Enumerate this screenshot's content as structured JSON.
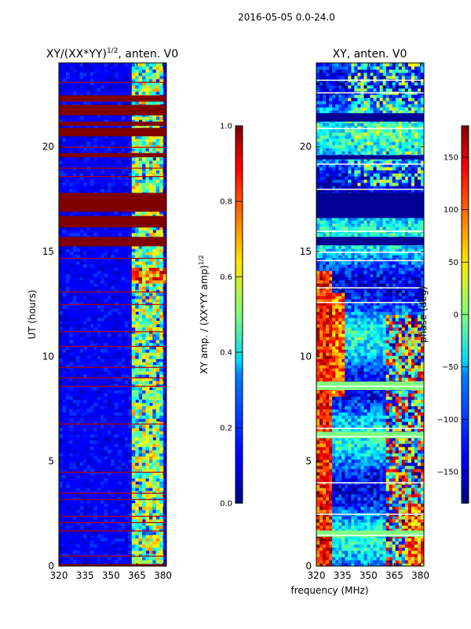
{
  "figure": {
    "suptitle": "2016-05-05 0.0-24.0",
    "xlabel": "frequency (MHz)"
  },
  "chart_data": [
    {
      "type": "heatmap",
      "title_main": "XY/(XX*YY)",
      "title_sup": "1/2",
      "title_tail": ", anten. V0",
      "ylabel": "UT (hours)",
      "xlim": [
        320,
        382
      ],
      "ylim": [
        0,
        24
      ],
      "xticks": [
        320,
        335,
        350,
        365,
        380
      ],
      "yticks": [
        0,
        5,
        10,
        15,
        20
      ],
      "colormap": "jet",
      "colorbar": {
        "label_main": "XY amp. / (XX*YY amp)",
        "label_sup": "1/2",
        "range": [
          0.0,
          1.0
        ],
        "ticks": [
          "0.0",
          "0.2",
          "0.4",
          "0.6",
          "0.8",
          "1.0"
        ],
        "tick_values": [
          0.0,
          0.2,
          0.4,
          0.6,
          0.8,
          1.0
        ]
      },
      "background_value": 0.12,
      "saturated_bands_hours": [
        [
          15.25,
          15.7
        ],
        [
          16.15,
          16.7
        ],
        [
          16.9,
          17.8
        ],
        [
          19.5,
          19.7
        ],
        [
          20.5,
          20.9
        ],
        [
          21.0,
          21.2
        ],
        [
          21.5,
          22.0
        ],
        [
          22.15,
          22.45
        ],
        [
          0.0,
          0.1
        ]
      ],
      "thin_red_lines_hours": [
        0.5,
        1.7,
        2.1,
        2.4,
        3.2,
        3.5,
        4.5,
        6.8,
        8.6,
        9.0,
        9.5,
        10.5,
        11.2,
        12.5,
        13.1,
        14.7,
        18.6,
        19.0,
        20.0,
        23.1
      ],
      "bright_freq_columns_MHz": [
        [
          361,
          364
        ],
        [
          365.5,
          367
        ],
        [
          368,
          371
        ],
        [
          372,
          375
        ],
        [
          376,
          379
        ]
      ],
      "flare_hours": [
        13.5,
        14.2
      ]
    },
    {
      "type": "heatmap",
      "title": "XY, anten. V0",
      "xlim": [
        320,
        382
      ],
      "ylim": [
        0,
        24
      ],
      "xticks": [
        320,
        335,
        350,
        365,
        380
      ],
      "yticks": [
        0,
        5,
        10,
        15,
        20
      ],
      "colormap": "jet",
      "colorbar": {
        "label": "phase (deg)",
        "range": [
          -180,
          180
        ],
        "ticks": [
          "−150",
          "−100",
          "−50",
          "0",
          "50",
          "100",
          "150"
        ],
        "tick_values": [
          -150,
          -100,
          -50,
          0,
          50,
          100,
          150
        ]
      },
      "dark_bands_hours": [
        [
          16.6,
          17.8
        ],
        [
          15.3,
          15.7
        ],
        [
          21.2,
          21.6
        ],
        [
          19.4,
          19.6
        ]
      ],
      "white_gap_hours": [
        1.5,
        2.5,
        4.0,
        6.2,
        6.6,
        8.6,
        12.6,
        13.3,
        14.6,
        15.0,
        16.0,
        18.0,
        19.2,
        20.9,
        22.6,
        23.2
      ],
      "green_band_hours": [
        [
          6.1,
          6.4
        ],
        [
          1.4,
          1.7
        ],
        [
          8.4,
          8.8
        ]
      ]
    }
  ]
}
